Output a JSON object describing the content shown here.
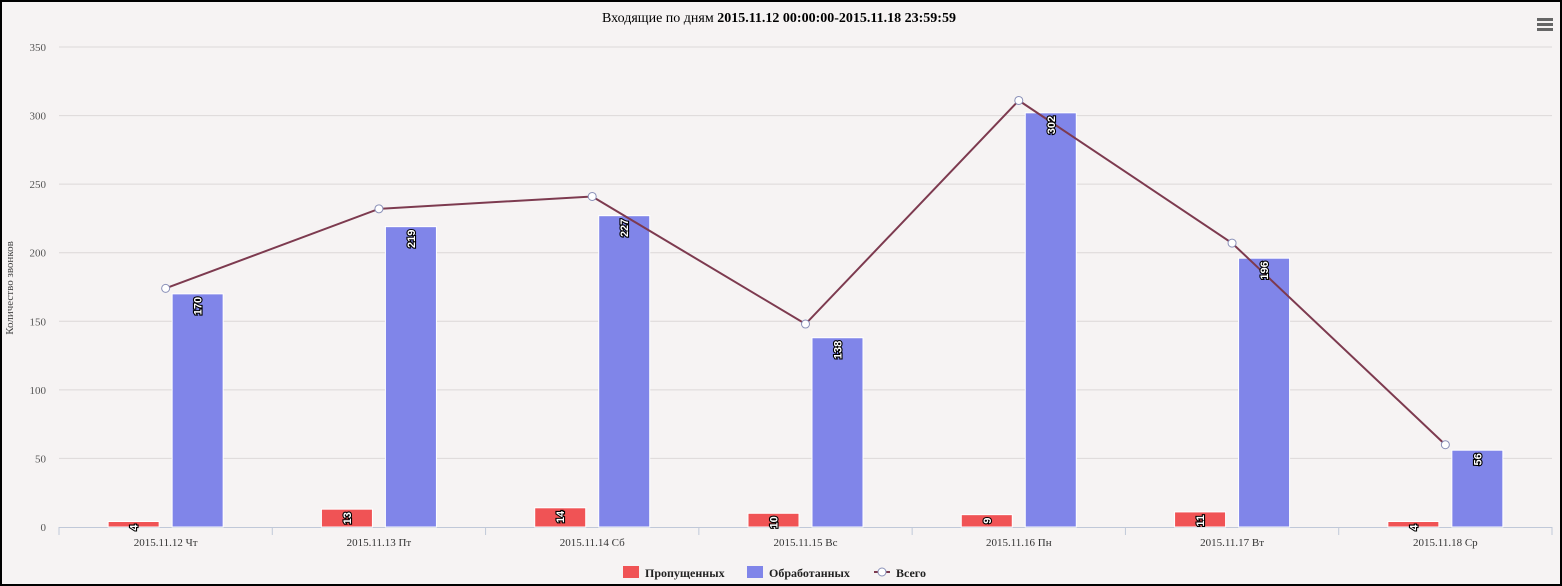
{
  "chart_data": {
    "type": "bar",
    "title_prefix": "Входящие по дням",
    "title_range": "2015.11.12 00:00:00-2015.11.18 23:59:59",
    "xlabel": "",
    "ylabel": "Количество звонков",
    "ylim": [
      0,
      350
    ],
    "yticks": [
      "0",
      "50",
      "100",
      "150",
      "200",
      "250",
      "300",
      "350"
    ],
    "categories": [
      "2015.11.12 Чт",
      "2015.11.13 Пт",
      "2015.11.14 Сб",
      "2015.11.15 Вс",
      "2015.11.16 Пн",
      "2015.11.17 Вт",
      "2015.11.18 Ср"
    ],
    "series": [
      {
        "name": "Пропущенных",
        "kind": "bar",
        "color": "#f05355",
        "values": [
          4,
          13,
          14,
          10,
          9,
          11,
          4
        ]
      },
      {
        "name": "Обработанных",
        "kind": "bar",
        "color": "#8085e9",
        "values": [
          170,
          219,
          227,
          138,
          302,
          196,
          56
        ]
      },
      {
        "name": "Всего",
        "kind": "line",
        "color": "#7d3a4f",
        "values": [
          174,
          232,
          241,
          148,
          311,
          207,
          60
        ]
      }
    ],
    "grid": true,
    "legend_position": "bottom-center"
  },
  "menu_icon": "hamburger-menu-icon"
}
